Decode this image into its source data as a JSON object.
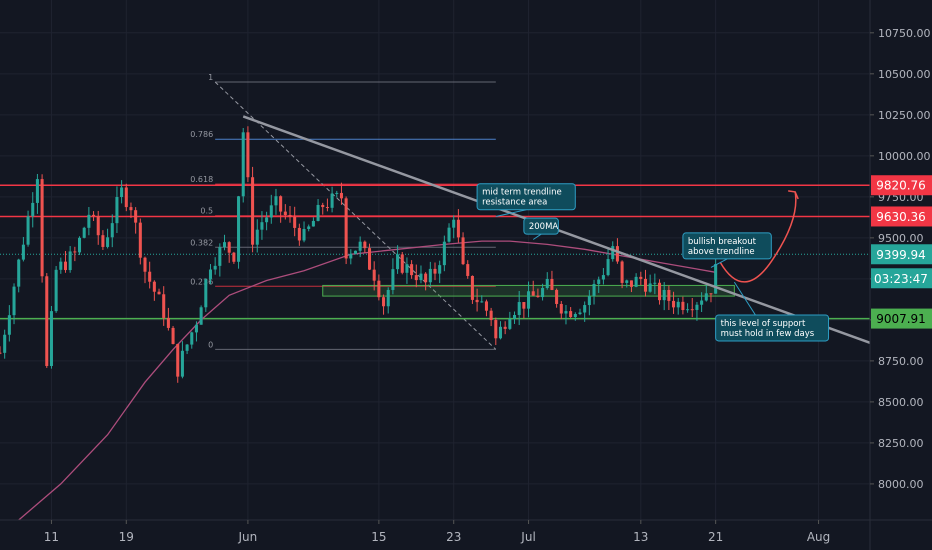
{
  "chart_data": {
    "type": "candlestick",
    "y_axis": {
      "ticks": [
        "10750.00",
        "10500.00",
        "10250.00",
        "10000.00",
        "9750.00",
        "9500.00",
        "9250.00",
        "9000.00",
        "8750.00",
        "8500.00",
        "8250.00",
        "8000.00"
      ],
      "tick_values": [
        10750,
        10500,
        10250,
        10000,
        9750,
        9500,
        9250,
        9000,
        8750,
        8500,
        8250,
        8000
      ],
      "range": [
        7780,
        10950
      ]
    },
    "x_axis": {
      "ticks": [
        "11",
        "19",
        "Jun",
        "15",
        "23",
        "Jul",
        "13",
        "21",
        "Aug"
      ],
      "tick_days": [
        11,
        19,
        32,
        46,
        54,
        62,
        74,
        82,
        93
      ],
      "range": [
        5.5,
        98.5
      ]
    },
    "candles": {
      "start_day": 5.5,
      "day_step": 0.5,
      "anchors": [
        [
          5.5,
          8800
        ],
        [
          7.5,
          9350
        ],
        [
          9.5,
          9900
        ],
        [
          10.5,
          8700
        ],
        [
          11.5,
          9300
        ],
        [
          13.5,
          9400
        ],
        [
          15,
          9650
        ],
        [
          16.5,
          9450
        ],
        [
          18.5,
          9780
        ],
        [
          19.5,
          9700
        ],
        [
          21,
          9300
        ],
        [
          23,
          9050
        ],
        [
          24.5,
          8700
        ],
        [
          26.5,
          9000
        ],
        [
          28,
          9350
        ],
        [
          29.5,
          9450
        ],
        [
          30.5,
          9400
        ],
        [
          31.5,
          10150
        ],
        [
          32.5,
          9500
        ],
        [
          33.5,
          9600
        ],
        [
          35,
          9700
        ],
        [
          36.5,
          9600
        ],
        [
          38,
          9500
        ],
        [
          40,
          9700
        ],
        [
          42,
          9750
        ],
        [
          42.5,
          9420
        ],
        [
          44,
          9450
        ],
        [
          45.5,
          9280
        ],
        [
          46.5,
          9100
        ],
        [
          48,
          9350
        ],
        [
          50,
          9280
        ],
        [
          51,
          9220
        ],
        [
          52,
          9300
        ],
        [
          53,
          9450
        ],
        [
          54,
          9650
        ],
        [
          55,
          9300
        ],
        [
          56,
          9150
        ],
        [
          57,
          9100
        ],
        [
          58,
          9020
        ],
        [
          58.5,
          8880
        ],
        [
          60,
          9060
        ],
        [
          62,
          9120
        ],
        [
          64,
          9200
        ],
        [
          66,
          9050
        ],
        [
          68,
          9100
        ],
        [
          70,
          9300
        ],
        [
          71,
          9450
        ],
        [
          72,
          9200
        ],
        [
          74,
          9250
        ],
        [
          76,
          9150
        ],
        [
          78,
          9100
        ],
        [
          80,
          9120
        ],
        [
          81.5,
          9200
        ],
        [
          82,
          9300
        ]
      ],
      "up_color": "#26a69a",
      "down_color": "#ef5350"
    },
    "moving_average": {
      "name": "200MA",
      "color": "#ad4d7c",
      "points": [
        [
          7.5,
          7780
        ],
        [
          12,
          8000
        ],
        [
          17,
          8300
        ],
        [
          21,
          8620
        ],
        [
          24,
          8820
        ],
        [
          27,
          9000
        ],
        [
          30,
          9150
        ],
        [
          34,
          9240
        ],
        [
          38,
          9300
        ],
        [
          43,
          9400
        ],
        [
          48,
          9430
        ],
        [
          53,
          9460
        ],
        [
          57,
          9480
        ],
        [
          60,
          9480
        ],
        [
          64,
          9460
        ],
        [
          68,
          9430
        ],
        [
          72,
          9390
        ],
        [
          76,
          9350
        ],
        [
          80,
          9310
        ],
        [
          82,
          9290
        ]
      ]
    },
    "horizontal_levels": [
      {
        "value": 9820.76,
        "label": "9820.76",
        "color": "#f23645"
      },
      {
        "value": 9630.36,
        "label": "9630.36",
        "color": "#f23645"
      },
      {
        "value": 9007.91,
        "label": "9007.91",
        "color": "#4caf50"
      }
    ],
    "current_price": {
      "label": "9399.94",
      "countdown": "03:23:47",
      "color": "#26a69a",
      "value": 9399.94
    },
    "trendline": {
      "start": [
        31.5,
        10240
      ],
      "end": [
        98.5,
        8860
      ],
      "color": "#9598a1"
    },
    "support_zone": {
      "x0": 40,
      "x1": 84,
      "y0": 9145,
      "y1": 9210,
      "color": "#4caf50"
    },
    "fibonacci": {
      "x0": 28.5,
      "x1": 58.5,
      "high": 10450,
      "low": 8820,
      "levels": [
        {
          "label": "1",
          "ratio": 1
        },
        {
          "label": "0.786",
          "ratio": 0.786
        },
        {
          "label": "0.618",
          "ratio": 0.618
        },
        {
          "label": "0.5",
          "ratio": 0.5
        },
        {
          "label": "0.382",
          "ratio": 0.382
        },
        {
          "label": "0.236",
          "ratio": 0.236
        },
        {
          "label": "0",
          "ratio": 0
        }
      ]
    },
    "projection": {
      "points": [
        [
          82.5,
          9350
        ],
        [
          85,
          9230
        ],
        [
          88,
          9360
        ],
        [
          90.5,
          9780
        ]
      ],
      "color": "#ef5350"
    },
    "annotations": [
      {
        "text": [
          "mid term trendline",
          "resistance area"
        ],
        "day": 56.5,
        "price": 9830,
        "pointer_day": 58.5,
        "pointer_price": 9630
      },
      {
        "text": [
          "200MA"
        ],
        "day": 61.5,
        "price": 9620,
        "pointer_day": 62.5,
        "pointer_price": 9490
      },
      {
        "text": [
          "bullish breakout",
          "above trendline"
        ],
        "day": 78.5,
        "price": 9530,
        "pointer_day": 81.5,
        "pointer_price": 9320
      },
      {
        "text": [
          "this level of support",
          "must hold in few days"
        ],
        "day": 82,
        "price": 9030,
        "pointer_day": 84,
        "pointer_price": 9230
      }
    ]
  }
}
